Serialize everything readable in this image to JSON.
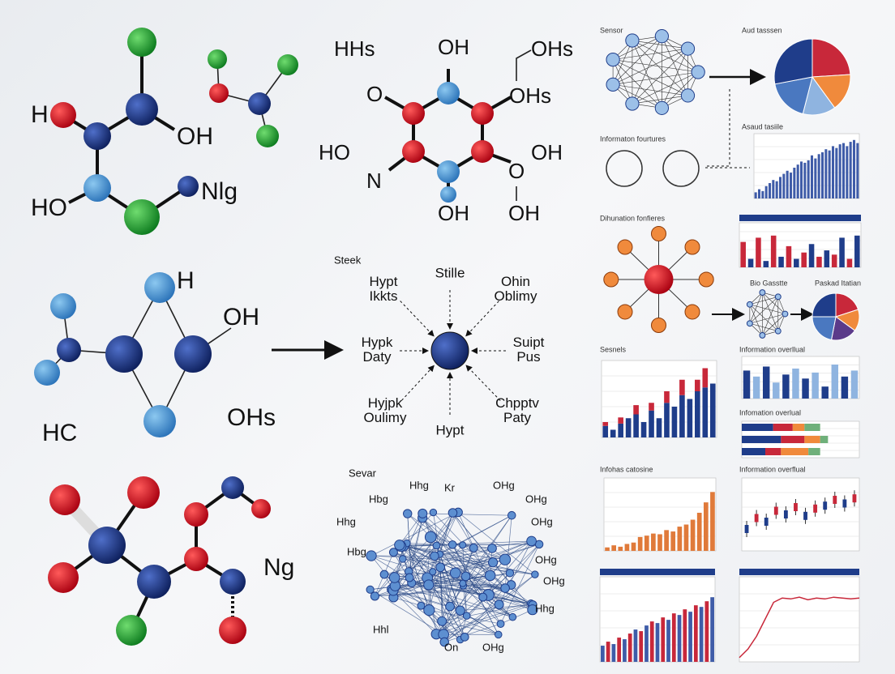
{
  "molecules": {
    "labels": [
      "H",
      "OH",
      "HO",
      "Nlg",
      "H",
      "OH",
      "HC",
      "OHs",
      "Ng"
    ]
  },
  "ring": {
    "labels": [
      "HHs",
      "OH",
      "OHs",
      "O",
      "OHs",
      "HO",
      "N",
      "OH",
      "O",
      "OH",
      "OH"
    ]
  },
  "hub": {
    "title": "Steek",
    "spokes": [
      "Stille",
      "Hypt Ikkts",
      "Ohin Oblimy",
      "Hypk Daty",
      "Suipt Pus",
      "Hyjpk Oulimy",
      "Chpptv Paty",
      "Hypt"
    ]
  },
  "network": {
    "title": "Sevar",
    "labels": [
      "Hhg",
      "Kr",
      "OHg",
      "Hbg",
      "OHg",
      "Hhg",
      "OHg",
      "Hbg",
      "OHg",
      "OHg",
      "Hhg",
      "Hhl",
      "On",
      "OHg"
    ]
  },
  "panels": [
    {
      "type": "network",
      "title": "Sensor"
    },
    {
      "type": "pie",
      "title": "Aud tasssen",
      "values": [
        24,
        16,
        14,
        18,
        28
      ],
      "colors": [
        "#c8283a",
        "#f08a3c",
        "#8fb4e0",
        "#4a78c0",
        "#1f3d8a"
      ]
    },
    {
      "type": "rings",
      "title": "Informaton fourtures"
    },
    {
      "type": "bars",
      "title": "Asaud tasiile",
      "values": [
        10,
        15,
        12,
        20,
        25,
        30,
        28,
        35,
        40,
        45,
        42,
        50,
        55,
        60,
        58,
        62,
        70,
        65,
        72,
        75,
        80,
        78,
        85,
        82,
        88,
        90,
        85,
        92,
        95,
        90
      ],
      "color": "#3f5ca8"
    },
    {
      "type": "hub",
      "title": "Dihunation fonfieres"
    },
    {
      "type": "bars",
      "values": [
        60,
        20,
        70,
        15,
        75,
        25,
        50,
        20,
        35,
        55,
        25,
        40,
        30,
        70,
        20,
        75
      ],
      "colors": [
        "#c8283a",
        "#1f3d8a"
      ]
    },
    {
      "type": "network",
      "title": "Bio Gasstte"
    },
    {
      "type": "pie",
      "title": "Paskad Itatian",
      "values": [
        20,
        15,
        18,
        22,
        25
      ],
      "colors": [
        "#c8283a",
        "#f08a3c",
        "#5b3a8a",
        "#4a78c0",
        "#1f3d8a"
      ]
    },
    {
      "type": "stacked",
      "title": "Sesnels",
      "series": [
        {
          "color": "#1f3d8a",
          "values": [
            15,
            10,
            18,
            25,
            30,
            20,
            35,
            25,
            45,
            40,
            55,
            50,
            60,
            65,
            70
          ]
        },
        {
          "color": "#c8283a",
          "values": [
            5,
            0,
            8,
            0,
            12,
            0,
            10,
            0,
            15,
            0,
            20,
            0,
            15,
            25,
            0
          ]
        }
      ]
    },
    {
      "type": "bars",
      "title": "Information overllual",
      "values": [
        70,
        55,
        80,
        40,
        60,
        75,
        50,
        65,
        30,
        85,
        55,
        70
      ],
      "colors": [
        "#1f3d8a",
        "#8fb4e0"
      ]
    },
    {
      "type": "hbars",
      "title": "Infomation overlual",
      "series": [
        {
          "color": "#1f3d8a",
          "values": [
            40,
            50,
            30
          ]
        },
        {
          "color": "#c8283a",
          "values": [
            25,
            30,
            20
          ]
        },
        {
          "color": "#f08a3c",
          "values": [
            15,
            20,
            35
          ]
        },
        {
          "color": "#6fb07a",
          "values": [
            20,
            10,
            15
          ]
        }
      ]
    },
    {
      "type": "bars",
      "title": "Infohas catosine",
      "values": [
        5,
        8,
        6,
        10,
        12,
        20,
        22,
        25,
        24,
        30,
        28,
        35,
        38,
        45,
        55,
        70,
        85
      ],
      "color": "#e07a3a"
    },
    {
      "type": "candle",
      "title": "Information overflual",
      "values": [
        30,
        45,
        40,
        55,
        50,
        60,
        48,
        58,
        62,
        70,
        65,
        72
      ],
      "colors": [
        "#1f3d8a",
        "#c8283a"
      ]
    },
    {
      "type": "bars",
      "values": [
        20,
        25,
        22,
        30,
        28,
        35,
        40,
        38,
        45,
        50,
        48,
        55,
        52,
        60,
        58,
        65,
        62,
        70,
        68,
        75,
        80
      ],
      "colors": [
        "#3f5ca8",
        "#c8283a"
      ]
    },
    {
      "type": "line",
      "values": [
        5,
        15,
        30,
        50,
        70,
        75,
        74,
        76,
        73,
        75,
        74,
        76,
        75,
        74,
        75
      ],
      "color": "#c8283a"
    }
  ]
}
